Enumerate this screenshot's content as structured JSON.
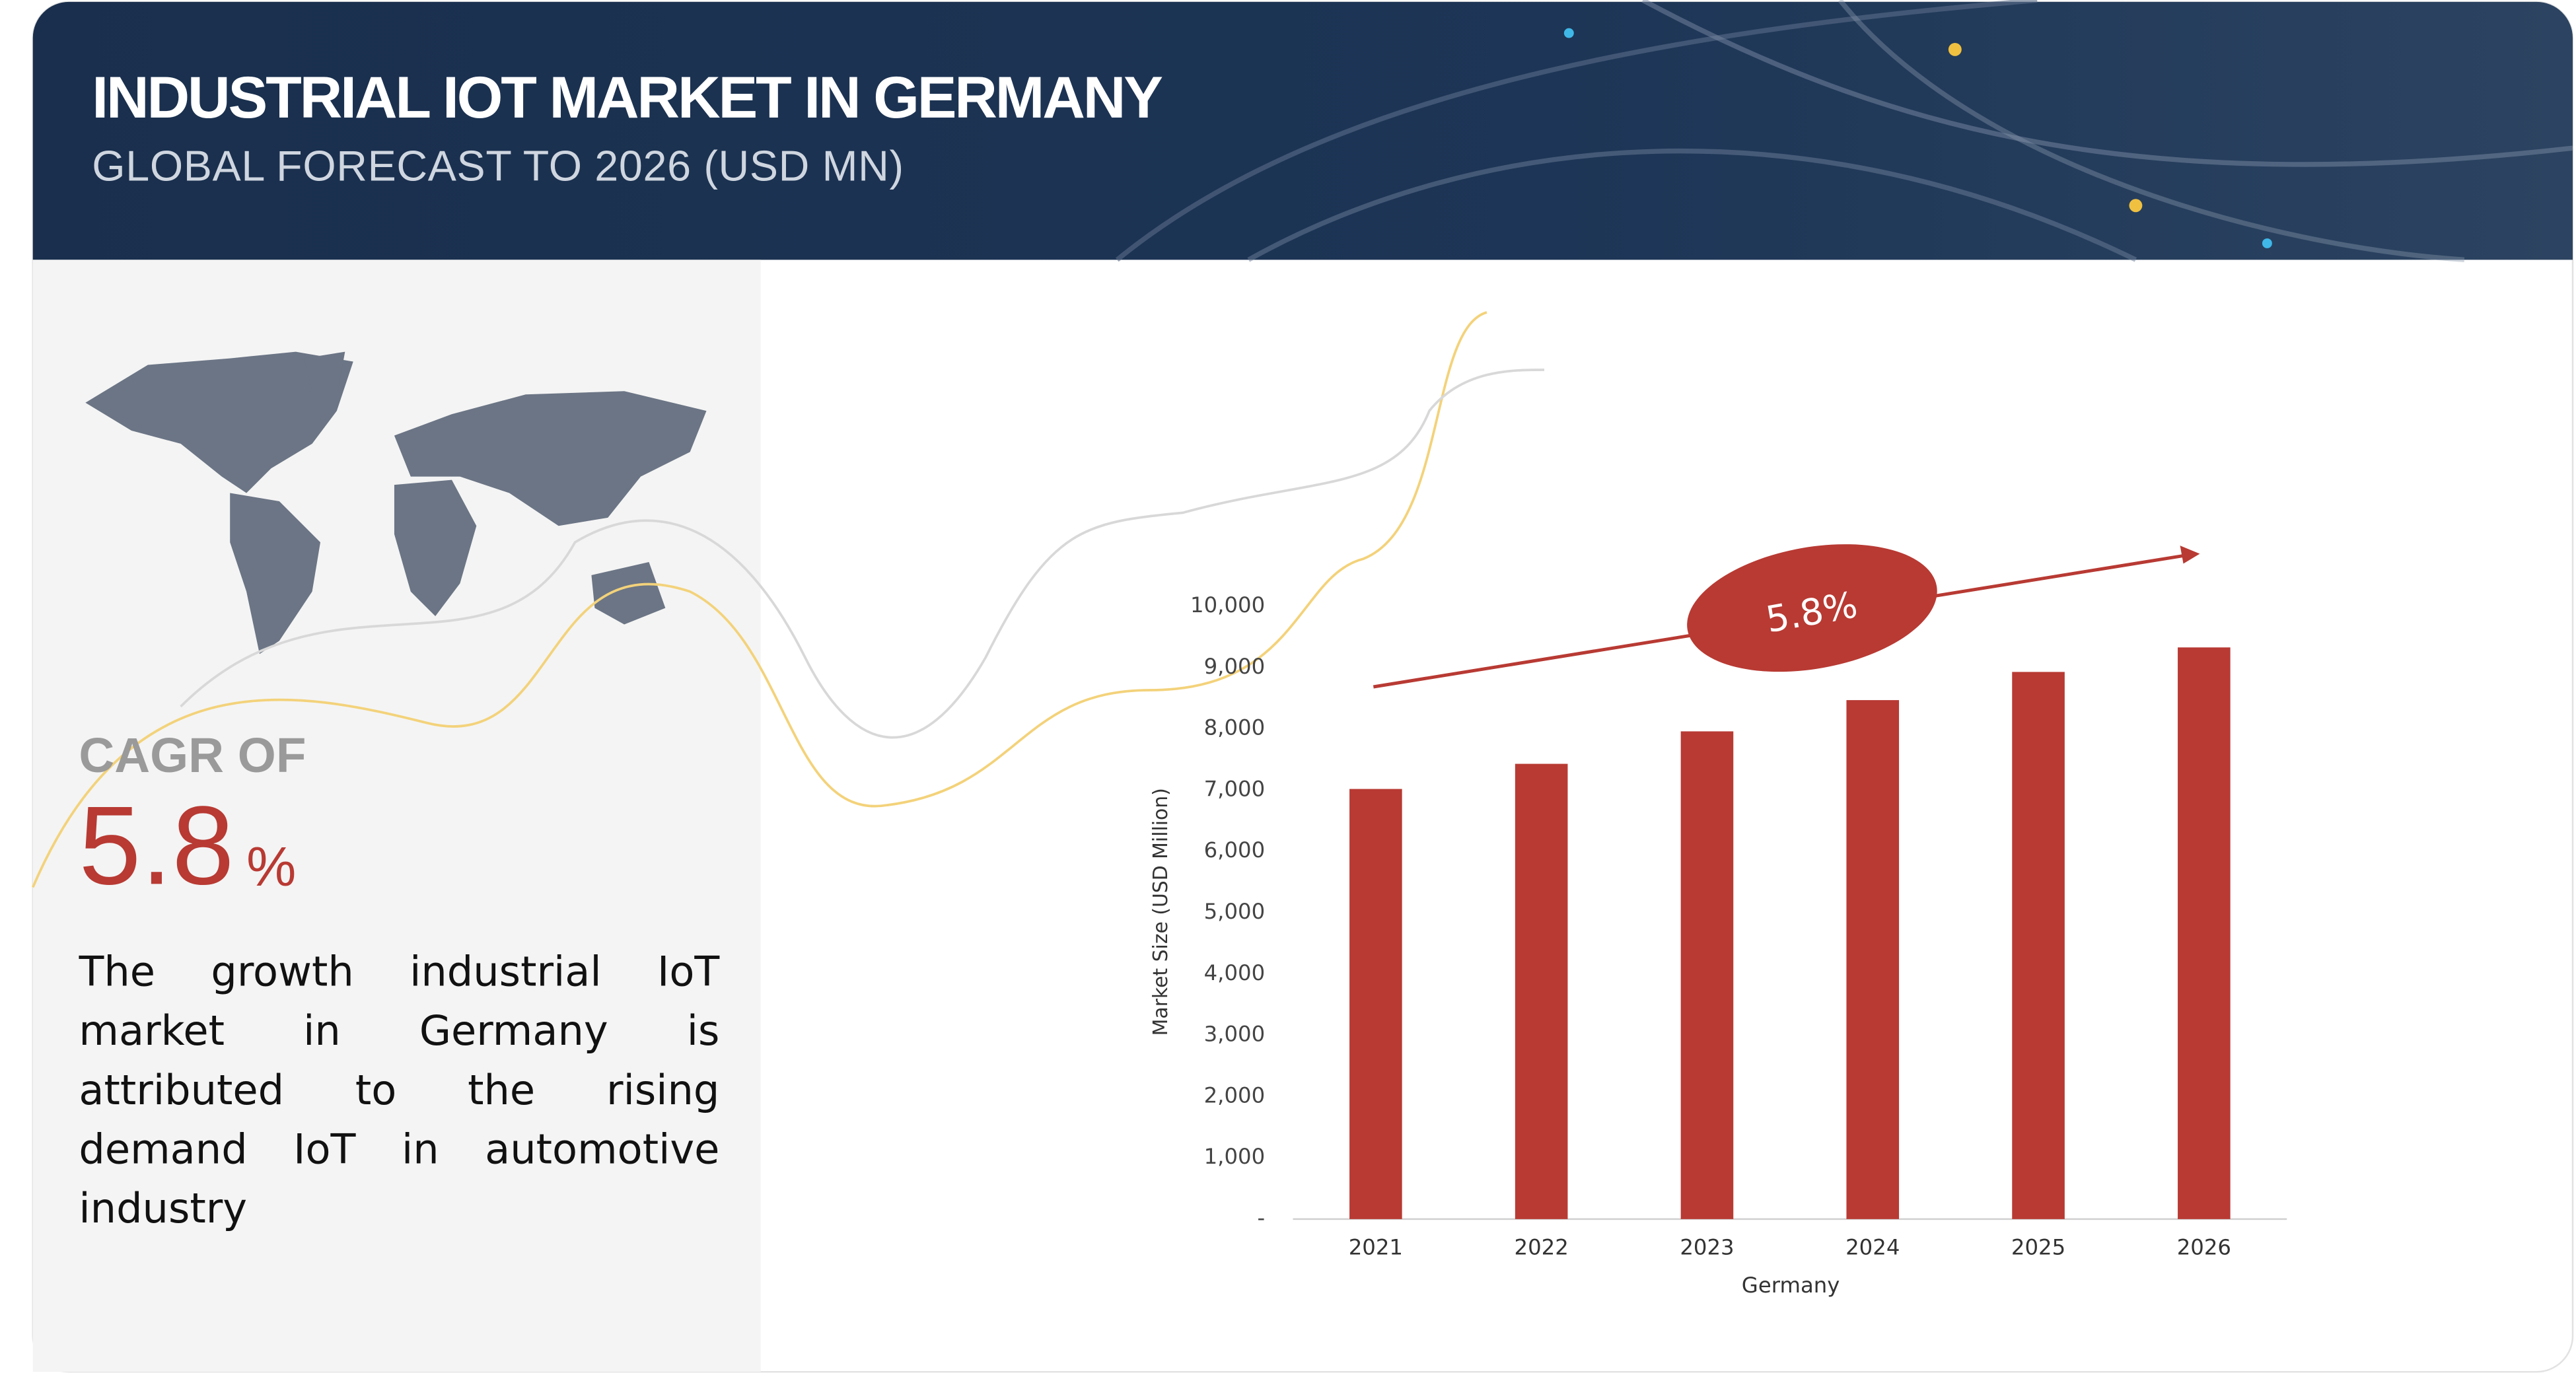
{
  "header": {
    "title": "INDUSTRIAL IOT MARKET IN GERMANY",
    "subtitle": "GLOBAL FORECAST TO 2026 (USD MN)"
  },
  "sidebar": {
    "cagr_label": "CAGR OF",
    "cagr_value": "5.8",
    "cagr_unit": "%",
    "description": "The growth industrial IoT market in Germany is attributed to the rising demand IoT in automotive industry"
  },
  "chart_data": {
    "type": "bar",
    "annotation": "5.8%",
    "x_label": "Germany",
    "y_label": "Market Size (USD Million)",
    "categories": [
      "2021",
      "2022",
      "2023",
      "2024",
      "2025",
      "2026"
    ],
    "values": [
      7020,
      7430,
      7960,
      8470,
      8930,
      9330
    ],
    "color": "#b83a33",
    "ylim": [
      0,
      10000
    ],
    "yticks": [
      {
        "value": 0,
        "label": "-"
      },
      {
        "value": 1000,
        "label": "1,000"
      },
      {
        "value": 2000,
        "label": "2,000"
      },
      {
        "value": 3000,
        "label": "3,000"
      },
      {
        "value": 4000,
        "label": "4,000"
      },
      {
        "value": 5000,
        "label": "5,000"
      },
      {
        "value": 6000,
        "label": "6,000"
      },
      {
        "value": 7000,
        "label": "7,000"
      },
      {
        "value": 8000,
        "label": "8,000"
      },
      {
        "value": 9000,
        "label": "9,000"
      },
      {
        "value": 10000,
        "label": "10,000"
      }
    ],
    "grid": false
  }
}
